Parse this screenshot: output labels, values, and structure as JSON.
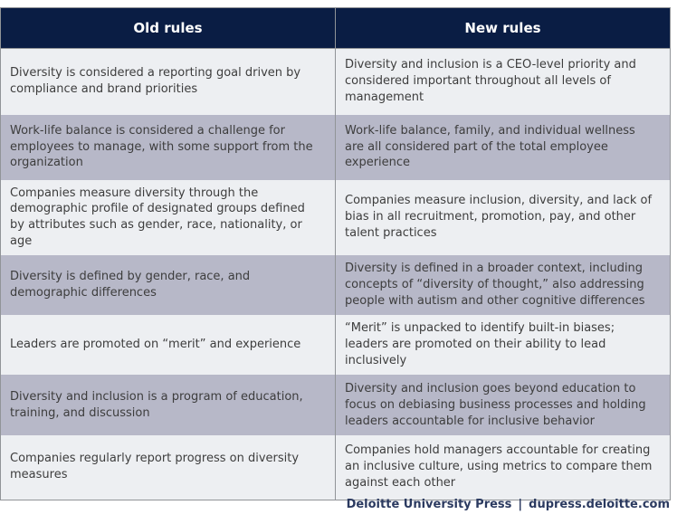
{
  "table": {
    "header": {
      "columns": [
        "Old rules",
        "New rules"
      ]
    },
    "rows": [
      {
        "old": "Diversity is considered a reporting goal driven by compliance and brand priorities",
        "new": "Diversity and inclusion is a CEO-level priority and considered important throughout all levels of management"
      },
      {
        "old": "Work-life balance is considered a challenge for employees to manage, with some support from the organization",
        "new": "Work-life balance, family, and individual wellness are all considered part of the total employee experience"
      },
      {
        "old": "Companies measure diversity through the demographic profile of designated groups defined by attributes such as gender, race, nationality, or age",
        "new": "Companies measure inclusion, diversity, and lack of bias in all recruitment, promotion, pay, and other talent practices"
      },
      {
        "old": "Diversity is defined by gender, race, and demographic differences",
        "new": "Diversity is defined in a broader context, including concepts of “diversity of thought,” also addressing people with autism and other cognitive differences"
      },
      {
        "old": "Leaders are promoted on “merit” and experience",
        "new": "“Merit” is unpacked to identify built-in biases; leaders are promoted on their ability to lead inclusively"
      },
      {
        "old": "Diversity and inclusion is a program of education, training, and discussion",
        "new": "Diversity and inclusion goes beyond education to focus on debiasing business processes and holding leaders accountable for inclusive behavior"
      },
      {
        "old": "Companies regularly report progress on diversity measures",
        "new": "Companies hold managers accountable for creating an inclusive culture, using metrics to compare them against each other"
      }
    ],
    "colors": {
      "header_bg": "#0a1d44",
      "header_text": "#ffffff",
      "row_light": "#edeff2",
      "row_dark": "#b7b8c8",
      "border": "#919498",
      "body_text": "#3d3d3d"
    }
  },
  "footer": {
    "publisher": "Deloitte University Press",
    "separator": "|",
    "url": "dupress.deloitte.com",
    "color": "#2b3a60"
  }
}
